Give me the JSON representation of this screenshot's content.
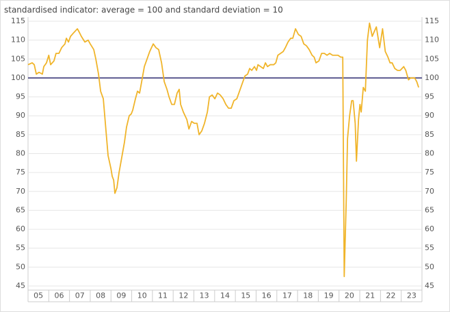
{
  "chart_data": {
    "type": "line",
    "subtitle": "standardised indicator: average = 100 and standard deviation = 10",
    "x": [
      2005.0,
      2005.2,
      2005.3,
      2005.4,
      2005.53,
      2005.69,
      2005.76,
      2005.89,
      2006.0,
      2006.09,
      2006.25,
      2006.35,
      2006.49,
      2006.62,
      2006.78,
      2006.85,
      2006.95,
      2007.05,
      2007.21,
      2007.38,
      2007.48,
      2007.57,
      2007.74,
      2007.9,
      2008.0,
      2008.17,
      2008.27,
      2008.4,
      2008.5,
      2008.63,
      2008.76,
      2008.86,
      2009.0,
      2009.06,
      2009.13,
      2009.19,
      2009.29,
      2009.39,
      2009.52,
      2009.65,
      2009.75,
      2009.88,
      2009.98,
      2010.05,
      2010.18,
      2010.28,
      2010.38,
      2010.48,
      2010.61,
      2010.74,
      2010.87,
      2011.04,
      2011.17,
      2011.3,
      2011.44,
      2011.57,
      2011.7,
      2011.8,
      2011.93,
      2012.06,
      2012.19,
      2012.29,
      2012.36,
      2012.49,
      2012.66,
      2012.76,
      2012.89,
      2013.02,
      2013.15,
      2013.25,
      2013.38,
      2013.51,
      2013.65,
      2013.75,
      2013.88,
      2014.01,
      2014.14,
      2014.27,
      2014.41,
      2014.54,
      2014.67,
      2014.8,
      2014.93,
      2015.07,
      2015.2,
      2015.33,
      2015.46,
      2015.59,
      2015.69,
      2015.79,
      2015.92,
      2016.02,
      2016.09,
      2016.22,
      2016.35,
      2016.45,
      2016.55,
      2016.68,
      2016.85,
      2016.95,
      2017.05,
      2017.18,
      2017.31,
      2017.41,
      2017.54,
      2017.67,
      2017.77,
      2017.9,
      2018.04,
      2018.17,
      2018.3,
      2018.43,
      2018.56,
      2018.7,
      2018.8,
      2018.89,
      2019.03,
      2019.16,
      2019.29,
      2019.42,
      2019.55,
      2019.69,
      2019.82,
      2019.95,
      2020.08,
      2020.18,
      2020.25,
      2020.35,
      2020.41,
      2020.51,
      2020.61,
      2020.68,
      2020.78,
      2020.84,
      2020.94,
      2021.01,
      2021.07,
      2021.17,
      2021.27,
      2021.37,
      2021.47,
      2021.6,
      2021.8,
      2021.96,
      2022.1,
      2022.23,
      2022.36,
      2022.46,
      2022.56,
      2022.69,
      2022.82,
      2022.95,
      2023.12,
      2023.22,
      2023.35,
      2023.45,
      2023.65,
      2023.75,
      2023.84
    ],
    "series": [
      {
        "color": "#f0b429",
        "values": [
          103.5,
          104,
          103.5,
          101,
          101.5,
          101,
          103,
          104,
          106,
          103.5,
          104.5,
          106.5,
          106.5,
          108,
          109,
          110.5,
          109.5,
          111,
          112,
          113,
          112,
          111,
          109.5,
          110,
          109,
          107.5,
          105,
          101,
          96.5,
          94.5,
          86,
          79.5,
          76,
          74,
          73,
          69.5,
          71,
          75,
          79,
          83,
          87,
          90,
          90.5,
          91.5,
          94.5,
          96.5,
          96,
          99,
          103,
          105,
          107,
          109,
          108,
          107.5,
          104,
          99,
          97,
          95,
          93,
          93,
          96,
          97,
          93,
          91,
          89,
          86.5,
          88.5,
          88,
          88,
          85,
          86,
          88,
          91,
          95,
          95.5,
          94.5,
          96,
          95.5,
          94.5,
          93,
          92,
          92,
          94,
          94.5,
          96.5,
          98.5,
          100.5,
          101,
          102.5,
          102,
          103,
          102,
          103.5,
          103,
          102.5,
          104,
          103,
          103.5,
          103.5,
          104,
          106,
          106.5,
          107,
          108,
          109.5,
          110.5,
          110.5,
          113,
          111.5,
          111,
          109,
          108.5,
          107.5,
          106,
          105.5,
          104,
          104.5,
          106.5,
          106.5,
          106,
          106.5,
          106,
          106,
          106,
          105.5,
          105.5,
          47.5,
          68,
          84,
          90,
          94,
          94,
          88,
          78,
          89,
          93,
          91,
          97.5,
          96.5,
          110,
          114.5,
          111,
          113.5,
          108,
          113,
          107,
          105.5,
          104,
          104,
          102.5,
          102,
          102,
          103,
          102,
          99.5,
          100,
          100,
          99,
          97.5
        ]
      }
    ],
    "reference_line": {
      "value": 100,
      "color": "#5b5a8f"
    },
    "xlim": [
      2005,
      2024
    ],
    "xticks": [
      {
        "value": 2005.5,
        "label": "05"
      },
      {
        "value": 2006.5,
        "label": "06"
      },
      {
        "value": 2007.5,
        "label": "07"
      },
      {
        "value": 2008.5,
        "label": "08"
      },
      {
        "value": 2009.5,
        "label": "09"
      },
      {
        "value": 2010.5,
        "label": "10"
      },
      {
        "value": 2011.5,
        "label": "11"
      },
      {
        "value": 2012.5,
        "label": "12"
      },
      {
        "value": 2013.5,
        "label": "13"
      },
      {
        "value": 2014.5,
        "label": "14"
      },
      {
        "value": 2015.5,
        "label": "15"
      },
      {
        "value": 2016.5,
        "label": "16"
      },
      {
        "value": 2017.5,
        "label": "17"
      },
      {
        "value": 2018.5,
        "label": "18"
      },
      {
        "value": 2019.5,
        "label": "19"
      },
      {
        "value": 2020.5,
        "label": "20"
      },
      {
        "value": 2021.5,
        "label": "21"
      },
      {
        "value": 2022.5,
        "label": "22"
      },
      {
        "value": 2023.5,
        "label": "23"
      }
    ],
    "ylim": [
      45,
      115
    ],
    "yticks": [
      45,
      50,
      55,
      60,
      65,
      70,
      75,
      80,
      85,
      90,
      95,
      100,
      105,
      110,
      115
    ],
    "grid": true
  }
}
